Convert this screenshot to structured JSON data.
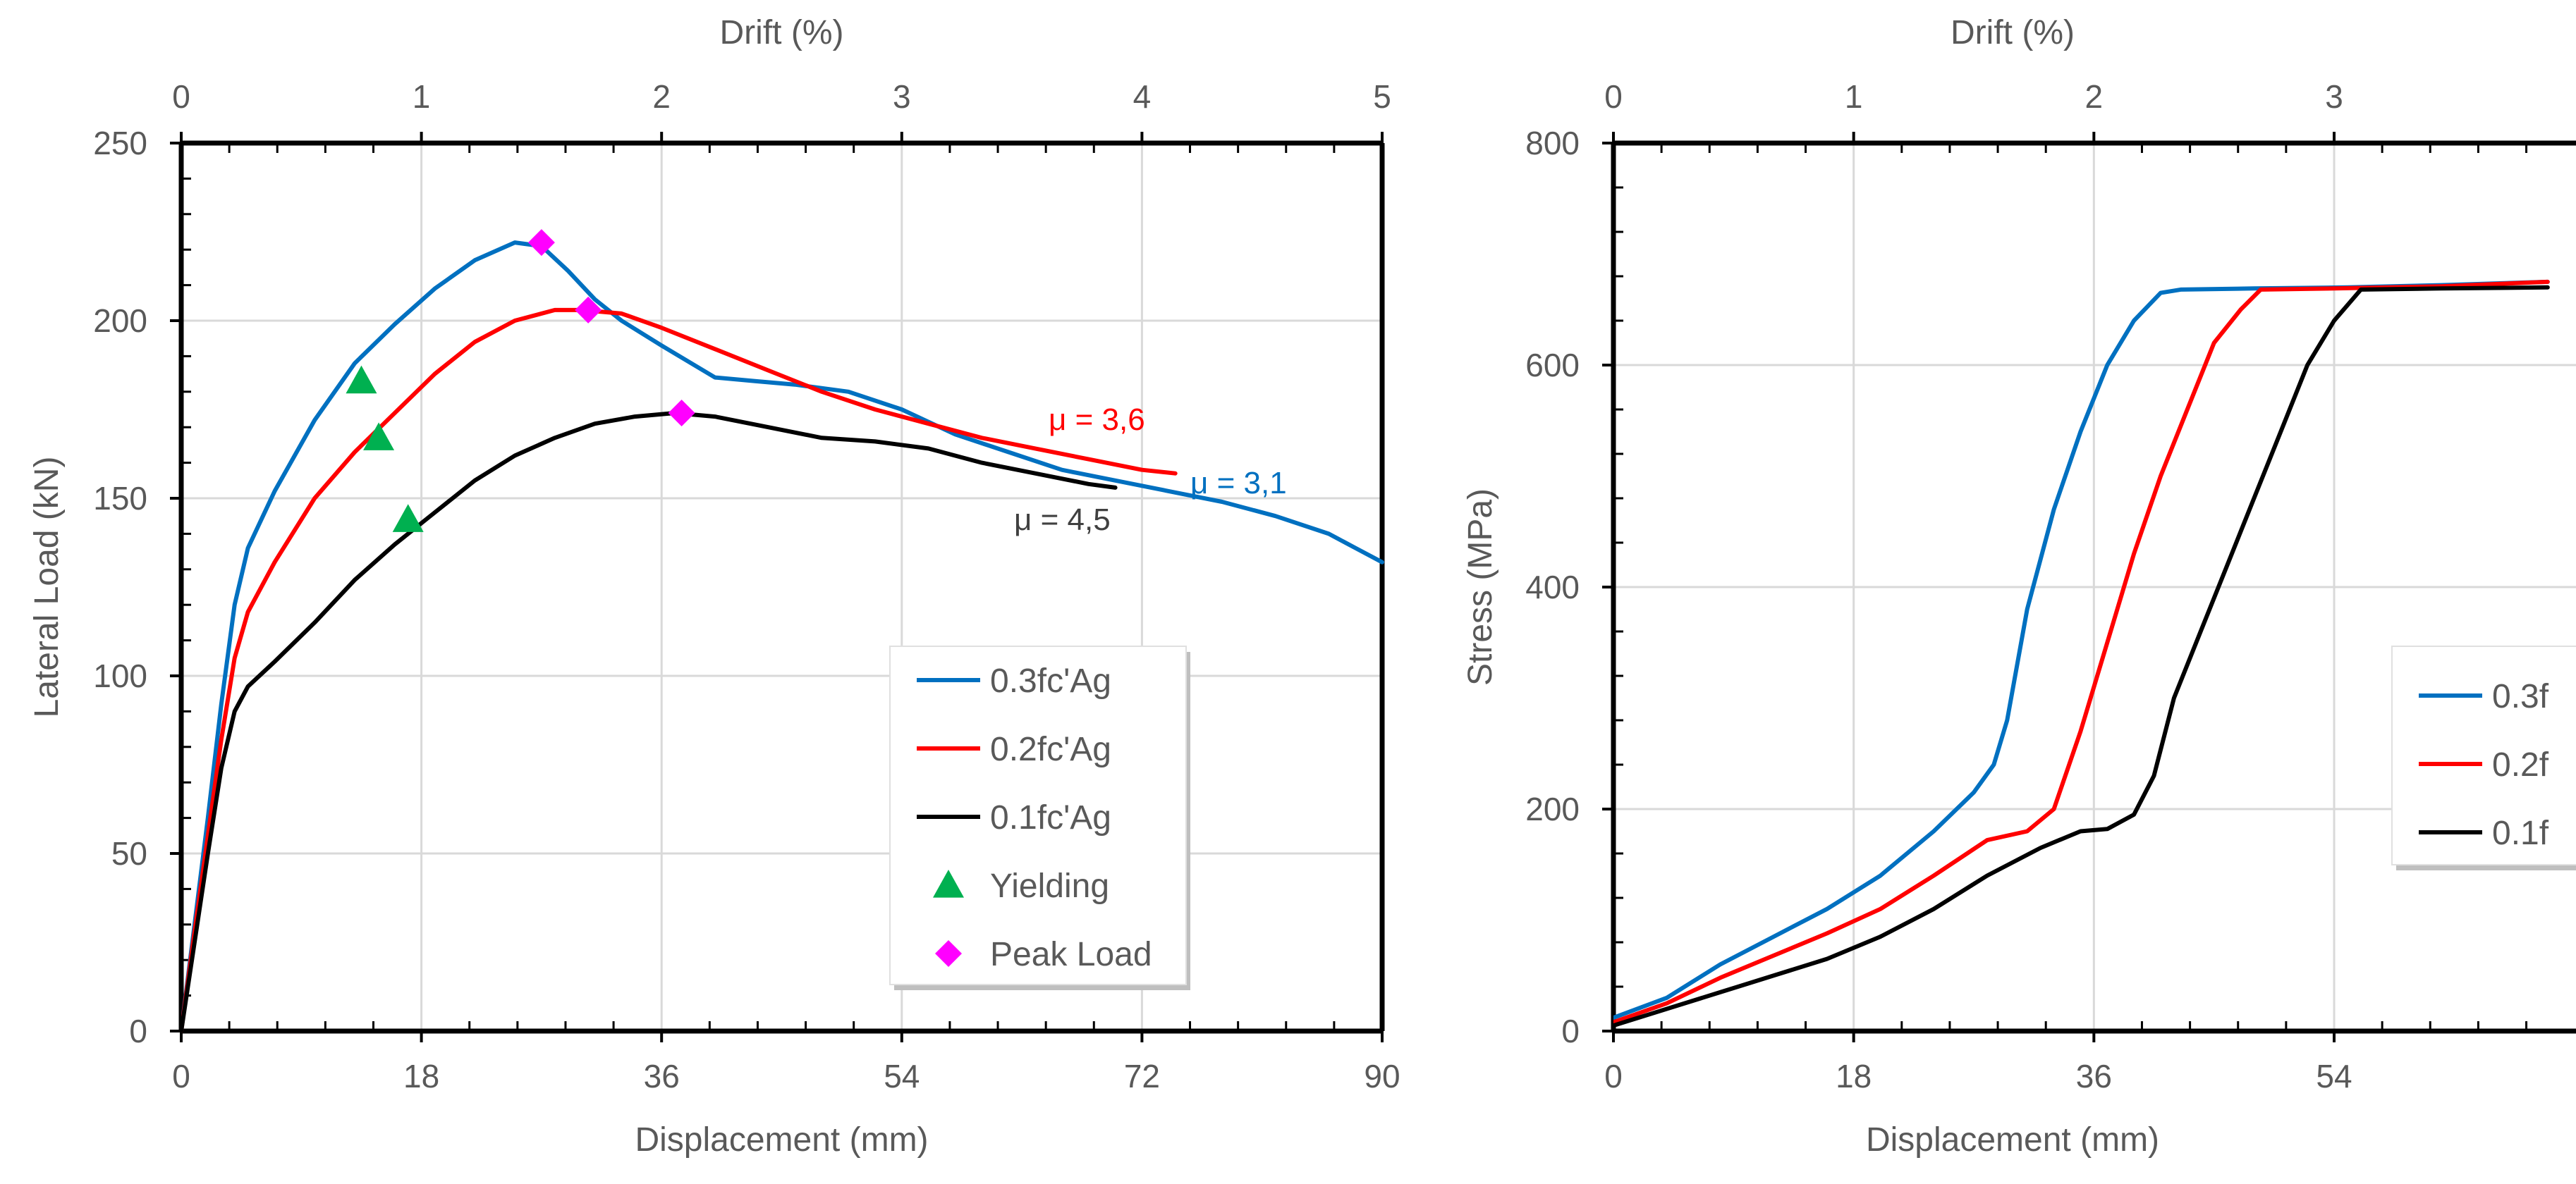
{
  "chart_data": [
    {
      "type": "line",
      "title": "",
      "xlabel": "Displacement (mm)",
      "ylabel": "Lateral Load (kN)",
      "x2label": "Drift (%)",
      "xlim": [
        0,
        90
      ],
      "ylim": [
        0,
        250
      ],
      "x2lim": [
        0,
        5
      ],
      "xticks": [
        "0",
        "18",
        "36",
        "54",
        "72",
        "90"
      ],
      "yticks": [
        "0",
        "50",
        "100",
        "150",
        "200",
        "250"
      ],
      "x2ticks": [
        "0",
        "1",
        "2",
        "3",
        "4",
        "5"
      ],
      "grid": true,
      "legend_position": "bottom-right",
      "series": [
        {
          "name": "0.3fc'Ag",
          "color": "#0070C0",
          "x": [
            0,
            1,
            2,
            3,
            4,
            5,
            7,
            10,
            13,
            16,
            19,
            22,
            25,
            27,
            29,
            31,
            33,
            36,
            40,
            43,
            46,
            50,
            54,
            58,
            62,
            66,
            70,
            74,
            78,
            82,
            86,
            88,
            90
          ],
          "y": [
            0,
            30,
            60,
            92,
            120,
            136,
            152,
            172,
            188,
            199,
            209,
            217,
            222,
            221,
            214,
            206,
            200,
            193,
            184,
            183,
            182,
            180,
            175,
            168,
            163,
            158,
            155,
            152,
            149,
            145,
            140,
            136,
            132
          ]
        },
        {
          "name": "0.2fc'Ag",
          "color": "#FF0000",
          "x": [
            0,
            1,
            2,
            3,
            4,
            5,
            7,
            10,
            13,
            16,
            19,
            22,
            25,
            28,
            30,
            33,
            36,
            40,
            44,
            48,
            52,
            56,
            60,
            64,
            68,
            72,
            74.5
          ],
          "y": [
            0,
            28,
            55,
            82,
            105,
            118,
            132,
            150,
            163,
            174,
            185,
            194,
            200,
            203,
            203,
            202,
            198,
            192,
            186,
            180,
            175,
            171,
            167,
            164,
            161,
            158,
            157
          ]
        },
        {
          "name": "0.1fc'Ag",
          "color": "#000000",
          "x": [
            0,
            1,
            2,
            3,
            4,
            5,
            7,
            10,
            13,
            16,
            19,
            22,
            25,
            28,
            31,
            34,
            37,
            40,
            44,
            48,
            52,
            56,
            60,
            64,
            68,
            70
          ],
          "y": [
            0,
            25,
            50,
            74,
            90,
            97,
            104,
            115,
            127,
            137,
            146,
            155,
            162,
            167,
            171,
            173,
            174,
            173,
            170,
            167,
            166,
            164,
            160,
            157,
            154,
            153
          ]
        }
      ],
      "markers": [
        {
          "name": "Yielding",
          "color": "#00B050",
          "shape": "triangle",
          "points": [
            [
              13.5,
              183
            ],
            [
              14.8,
              167
            ],
            [
              17,
              144
            ]
          ]
        },
        {
          "name": "Peak Load",
          "color": "#FF00FF",
          "shape": "diamond",
          "points": [
            [
              27,
              222
            ],
            [
              30.5,
              203
            ],
            [
              37.5,
              174
            ]
          ]
        }
      ],
      "annotations": [
        {
          "text": "μ = 3,6",
          "color": "#FF0000"
        },
        {
          "text": "μ = 3,1",
          "color": "#0070C0"
        },
        {
          "text": "μ = 4,5",
          "color": "#404040"
        }
      ]
    },
    {
      "type": "line",
      "title": "",
      "xlabel": "Displacement (mm)",
      "ylabel": "Stress (MPa)",
      "x2label": "Drift (%)",
      "xlim": [
        0,
        70
      ],
      "ylim": [
        0,
        800
      ],
      "xticks": [
        "0",
        "18",
        "36",
        "54"
      ],
      "yticks": [
        "0",
        "200",
        "400",
        "600",
        "800"
      ],
      "x2ticks": [
        "0",
        "1",
        "2",
        "3"
      ],
      "grid": true,
      "legend_position": "right (cropped)",
      "legend_labels": [
        "0.3f",
        "0.2f",
        "0.1f"
      ],
      "series": [
        {
          "name": "0.3f",
          "color": "#0070C0",
          "x": [
            0,
            4,
            8,
            12,
            16,
            20,
            24,
            27,
            28.5,
            29.5,
            31,
            33,
            35,
            37,
            39,
            41,
            42.5,
            48,
            55,
            62,
            70
          ],
          "y": [
            12,
            30,
            60,
            85,
            110,
            140,
            180,
            215,
            240,
            280,
            380,
            470,
            540,
            600,
            640,
            665,
            668,
            669,
            670,
            672,
            675
          ]
        },
        {
          "name": "0.2f",
          "color": "#FF0000",
          "x": [
            0,
            4,
            8,
            12,
            16,
            20,
            24,
            28,
            31,
            33,
            35,
            37,
            39,
            41,
            43,
            45,
            47,
            48.5,
            54,
            62,
            70
          ],
          "y": [
            8,
            25,
            48,
            68,
            88,
            110,
            140,
            172,
            180,
            200,
            270,
            350,
            430,
            500,
            560,
            620,
            650,
            668,
            669,
            671,
            675
          ]
        },
        {
          "name": "0.1f",
          "color": "#000000",
          "x": [
            0,
            4,
            8,
            12,
            16,
            20,
            24,
            28,
            32,
            35,
            37,
            39,
            40.5,
            42,
            44,
            46,
            48,
            50,
            52,
            54,
            56,
            62,
            70
          ],
          "y": [
            5,
            20,
            35,
            50,
            65,
            85,
            110,
            140,
            165,
            180,
            182,
            195,
            230,
            300,
            360,
            420,
            480,
            540,
            600,
            640,
            668,
            669,
            670
          ]
        }
      ]
    }
  ]
}
